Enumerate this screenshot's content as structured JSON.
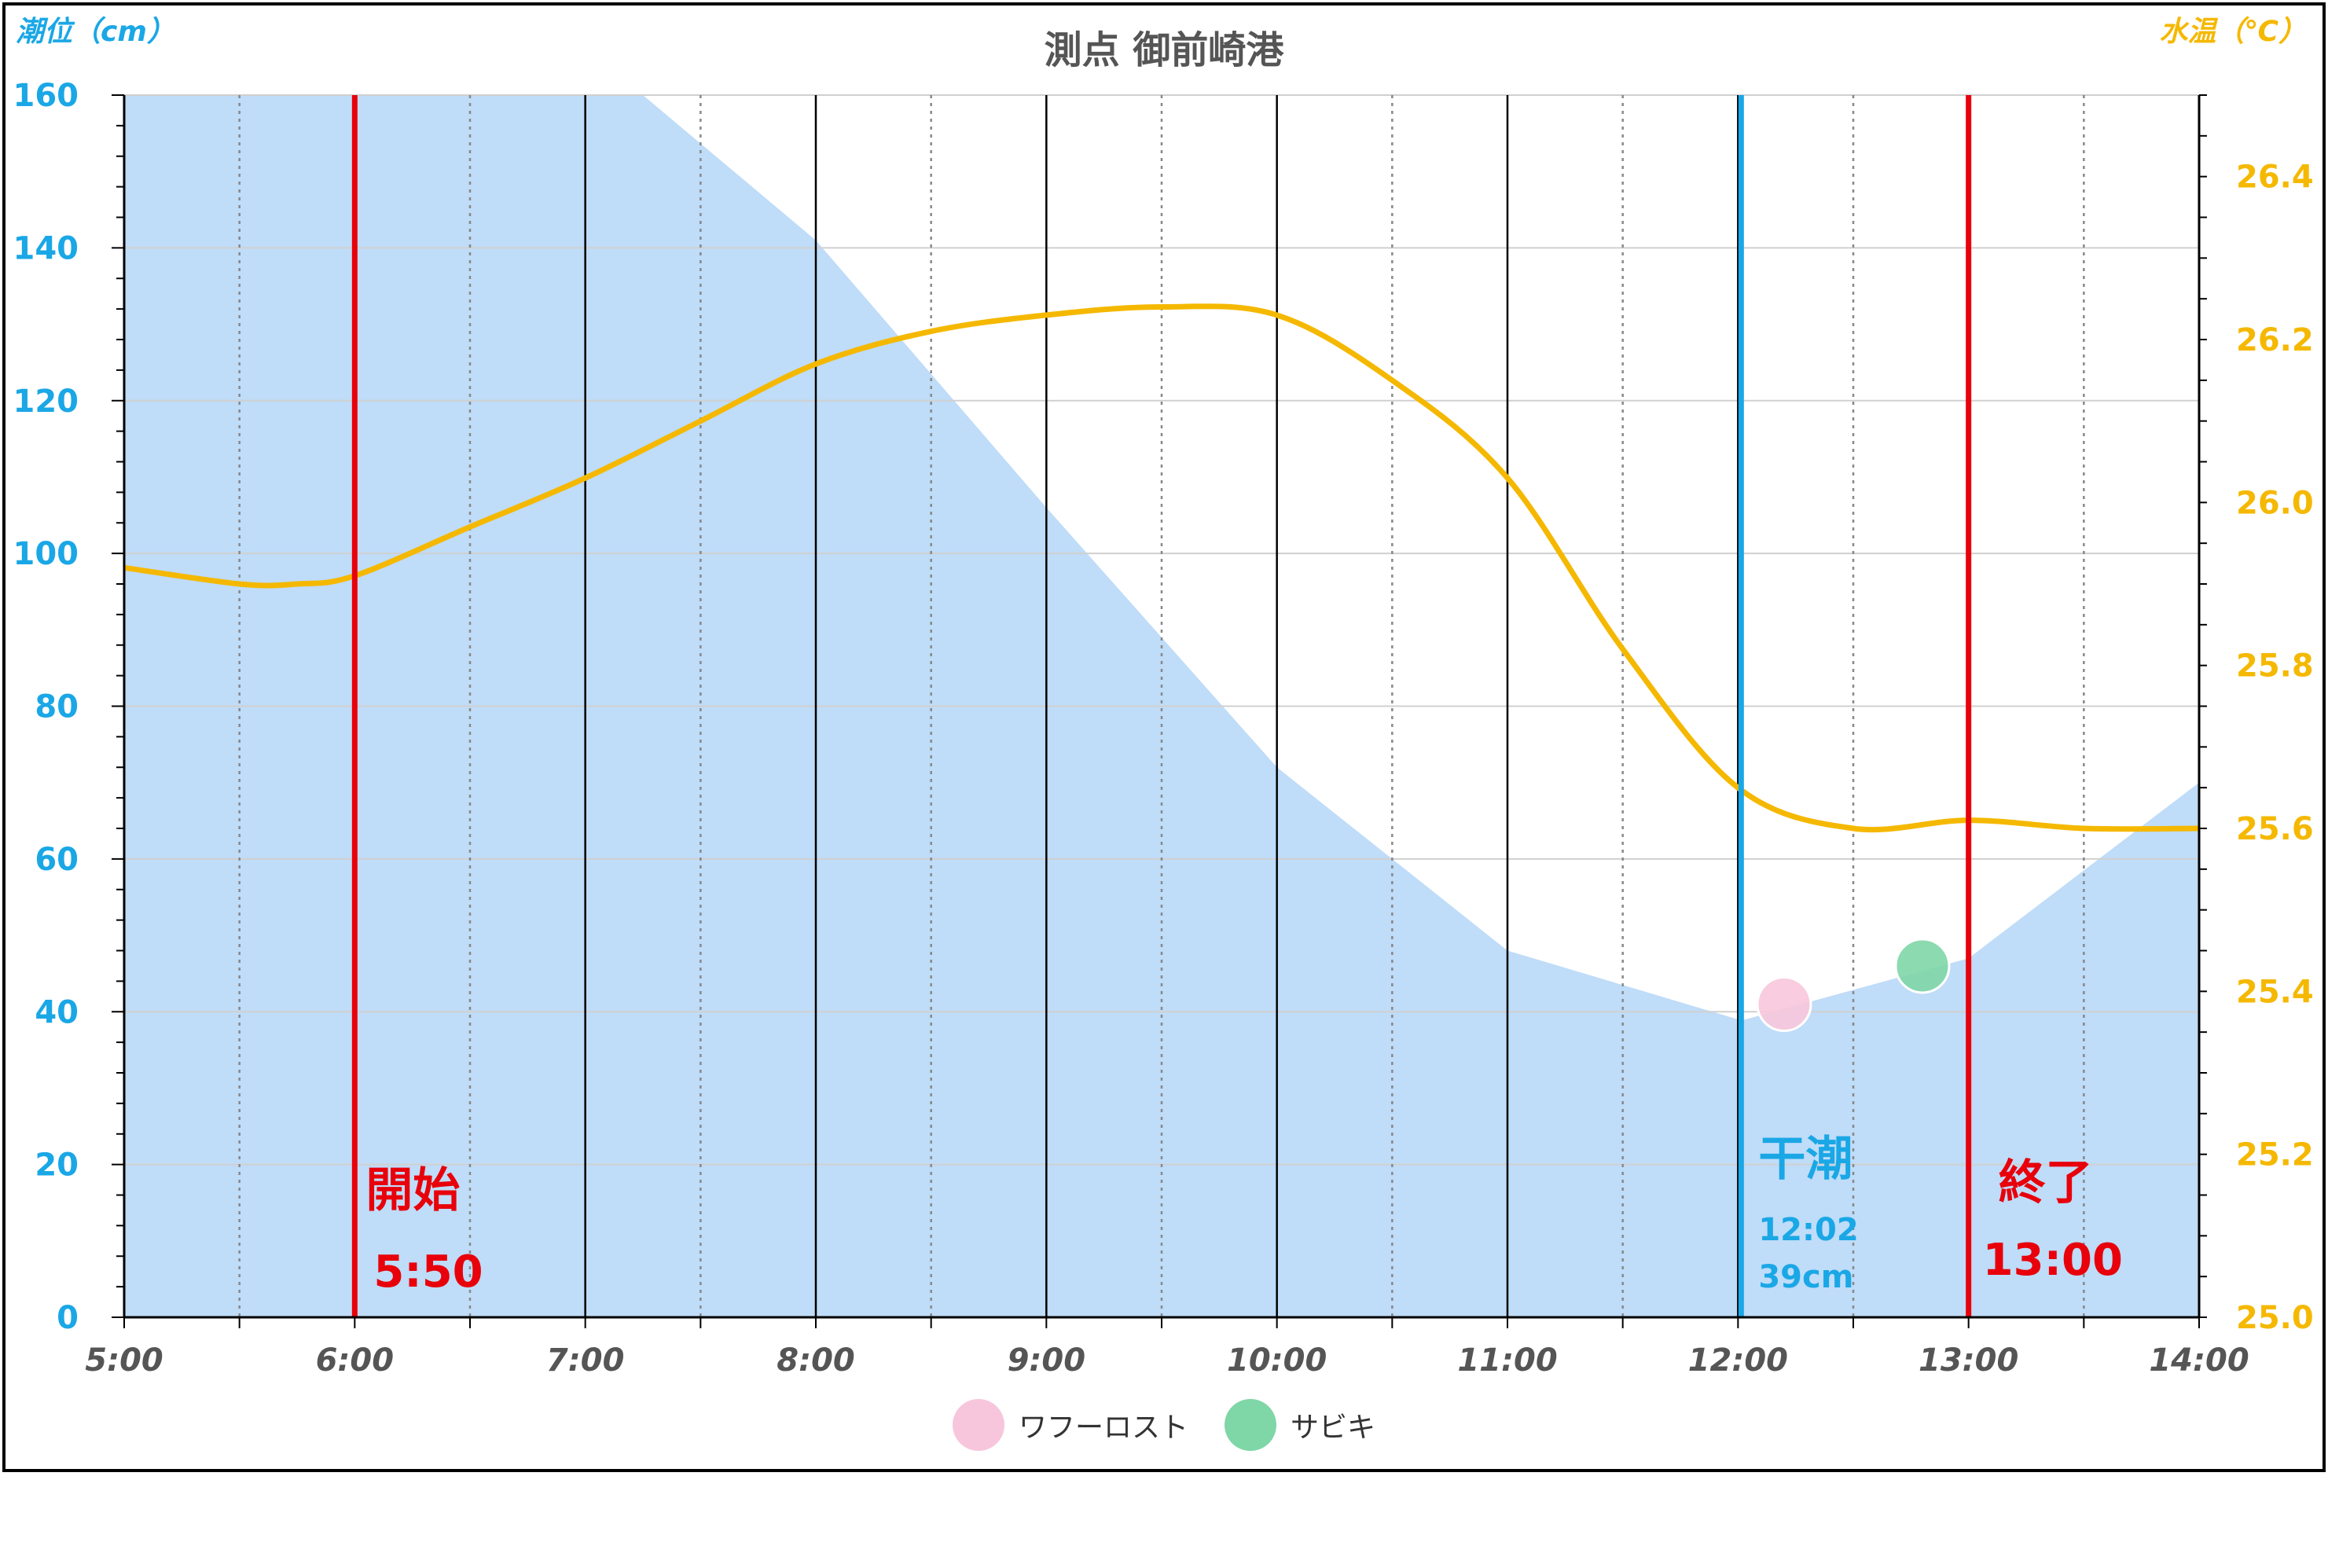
{
  "colors": {
    "tide_fill": "#bfdcf8",
    "temp_line": "#f5b800",
    "marker_red": "#e8000b",
    "low_tide": "#1aa7e6",
    "left_axis": "#1aa7e6",
    "right_axis": "#f5b800",
    "wafu_marker": "#f8c6dc",
    "sabiki_marker": "#7fd6a6"
  },
  "chart_data": {
    "type": "area",
    "title": "測点 御前崎港",
    "ylabel": "潮位（cm）",
    "y2label": "水温（℃）",
    "xlim": [
      "5:00",
      "14:00"
    ],
    "ylim": [
      0,
      160
    ],
    "y2lim": [
      25.0,
      26.5
    ],
    "x_ticks": [
      "5:00",
      "6:00",
      "7:00",
      "8:00",
      "9:00",
      "10:00",
      "11:00",
      "12:00",
      "13:00",
      "14:00"
    ],
    "y_ticks": [
      "0",
      "20",
      "40",
      "60",
      "80",
      "100",
      "120",
      "140",
      "160"
    ],
    "y2_ticks": [
      "25.0",
      "25.2",
      "25.4",
      "25.6",
      "25.8",
      "26.0",
      "26.2",
      "26.4"
    ],
    "grid": true,
    "series": [
      {
        "name": "潮位",
        "axis": "left",
        "x": [
          "5:00",
          "6:00",
          "7:00",
          "7:15",
          "8:00",
          "9:00",
          "10:00",
          "11:00",
          "12:00",
          "12:02",
          "13:00",
          "14:00"
        ],
        "values": [
          160,
          160,
          160,
          160,
          141,
          106,
          72,
          48,
          39,
          39,
          47,
          70
        ]
      },
      {
        "name": "水温",
        "axis": "right",
        "x": [
          "5:00",
          "5:30",
          "5:45",
          "6:00",
          "6:30",
          "7:00",
          "7:30",
          "8:00",
          "8:30",
          "9:00",
          "9:30",
          "10:00",
          "10:30",
          "11:00",
          "11:30",
          "12:00",
          "12:30",
          "13:00",
          "13:30",
          "14:00"
        ],
        "values": [
          25.92,
          25.9,
          25.9,
          25.91,
          25.97,
          26.03,
          26.1,
          26.17,
          26.21,
          26.23,
          26.24,
          26.23,
          26.15,
          26.03,
          25.82,
          25.65,
          25.6,
          25.61,
          25.6,
          25.6
        ]
      }
    ],
    "annotations": {
      "start": {
        "label": "開始",
        "time": "5:50",
        "line_at": "6:00"
      },
      "end": {
        "label": "終了",
        "time": "13:00",
        "line_at": "13:00"
      },
      "low_tide": {
        "label": "干潮",
        "time": "12:02",
        "level": "39cm",
        "line_at": "12:00"
      }
    },
    "catches": [
      {
        "name": "ワフーロスト",
        "x": "12:12",
        "y": 41
      },
      {
        "name": "サビキ",
        "x": "12:48",
        "y": 46
      }
    ]
  }
}
